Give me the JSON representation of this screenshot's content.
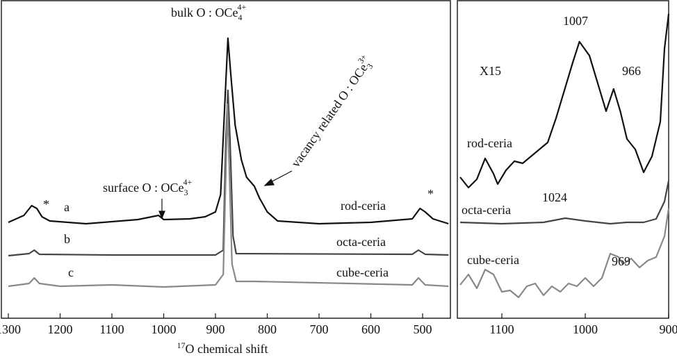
{
  "chart_data": [
    {
      "type": "line",
      "x_label": {
        "sup": "17",
        "text": "O  chemical shift"
      },
      "xlim": [
        1300,
        450
      ],
      "xticks": [
        1300,
        1200,
        1100,
        1000,
        900,
        800,
        700,
        600,
        500
      ],
      "ylim": [
        0,
        460
      ],
      "series": [
        {
          "name": "rod-ceria",
          "color": "#111111",
          "x": [
            1300,
            1270,
            1255,
            1245,
            1235,
            1220,
            1150,
            1050,
            1010,
            1000,
            950,
            920,
            900,
            890,
            882,
            876,
            870,
            862,
            850,
            840,
            825,
            815,
            800,
            780,
            700,
            600,
            520,
            505,
            495,
            480,
            450
          ],
          "values": [
            140,
            150,
            164,
            160,
            148,
            142,
            138,
            144,
            150,
            144,
            145,
            148,
            155,
            180,
            310,
            405,
            350,
            280,
            230,
            205,
            192,
            175,
            155,
            142,
            138,
            140,
            145,
            160,
            155,
            145,
            138
          ]
        },
        {
          "name": "octa-ceria",
          "color": "#444444",
          "x": [
            1300,
            1260,
            1250,
            1240,
            1100,
            900,
            885,
            880,
            876,
            872,
            866,
            860,
            520,
            508,
            495,
            450
          ],
          "values": [
            92,
            95,
            100,
            94,
            93,
            93,
            100,
            260,
            330,
            260,
            120,
            95,
            94,
            100,
            94,
            93
          ]
        },
        {
          "name": "cube-ceria",
          "color": "#888888",
          "x": [
            1300,
            1260,
            1250,
            1240,
            1200,
            1100,
            1000,
            900,
            885,
            880,
            877,
            873,
            868,
            860,
            825,
            520,
            508,
            495,
            450
          ],
          "values": [
            48,
            52,
            60,
            52,
            48,
            50,
            47,
            50,
            65,
            210,
            310,
            210,
            80,
            55,
            55,
            50,
            60,
            50,
            48
          ]
        }
      ],
      "annotations": [
        {
          "text": "*"
        },
        {
          "text": "*"
        },
        {
          "text": "a"
        },
        {
          "text": "b"
        },
        {
          "text": "c"
        },
        {
          "text": "bulk O : OCe",
          "sub": "4",
          "sup": "4+"
        },
        {
          "text": "surface O : OCe",
          "sub": "3",
          "sup": "4+"
        },
        {
          "text": "vacancy related O : OCe",
          "sub": "3",
          "sup": "3+"
        }
      ]
    },
    {
      "type": "line",
      "xlim": [
        1150,
        900
      ],
      "xticks": [
        1100,
        1000,
        900
      ],
      "ylim": [
        0,
        460
      ],
      "series": [
        {
          "name": "rod-ceria",
          "color": "#111111",
          "x": [
            1150,
            1140,
            1130,
            1120,
            1110,
            1105,
            1095,
            1085,
            1075,
            1065,
            1055,
            1045,
            1035,
            1025,
            1015,
            1007,
            995,
            985,
            975,
            966,
            958,
            950,
            940,
            930,
            920,
            910,
            905,
            900
          ],
          "values": [
            205,
            190,
            202,
            232,
            210,
            195,
            215,
            228,
            225,
            235,
            245,
            255,
            290,
            330,
            370,
            400,
            380,
            340,
            300,
            332,
            300,
            260,
            245,
            212,
            235,
            285,
            390,
            440
          ]
        },
        {
          "name": "octa-ceria",
          "color": "#444444",
          "x": [
            1150,
            1100,
            1050,
            1024,
            1000,
            970,
            950,
            930,
            915,
            905,
            900
          ],
          "values": [
            140,
            138,
            140,
            146,
            142,
            138,
            140,
            140,
            145,
            170,
            200
          ]
        },
        {
          "name": "cube-ceria",
          "color": "#888888",
          "x": [
            1150,
            1140,
            1130,
            1120,
            1110,
            1100,
            1090,
            1080,
            1070,
            1060,
            1050,
            1040,
            1030,
            1020,
            1010,
            1000,
            990,
            980,
            970,
            960,
            955,
            945,
            935,
            925,
            915,
            905,
            900
          ],
          "values": [
            50,
            65,
            45,
            72,
            65,
            40,
            42,
            32,
            48,
            52,
            35,
            48,
            40,
            52,
            48,
            60,
            48,
            60,
            95,
            90,
            80,
            88,
            75,
            85,
            90,
            120,
            160
          ]
        }
      ],
      "annotations": [
        {
          "text": "X15"
        },
        {
          "text": "1007"
        },
        {
          "text": "966"
        },
        {
          "text": "1024"
        },
        {
          "text": "969"
        }
      ]
    }
  ]
}
